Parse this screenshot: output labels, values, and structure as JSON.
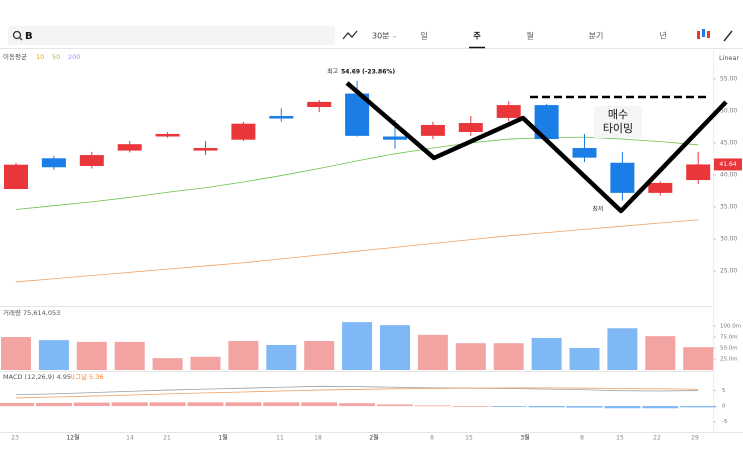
{
  "toolbar": {
    "search": "B",
    "interval": "30분",
    "tabs": [
      "일",
      "주",
      "월",
      "분기",
      "년"
    ],
    "active_tab": 1
  },
  "chart_data": {
    "type": "candlestick",
    "indicator": {
      "label": "이동평균",
      "periods": [
        {
          "text": "10",
          "color": "#e0a000"
        },
        {
          "text": "50",
          "color": "#8bc34a"
        },
        {
          "text": "200",
          "color": "#b388ff"
        }
      ]
    },
    "scale": "Linear",
    "ylim": [
      19.7,
      59.5
    ],
    "yticks": [
      {
        "value": 55,
        "label": "55.00"
      },
      {
        "value": 50,
        "label": "50.00"
      },
      {
        "value": 45,
        "label": "45.00"
      },
      {
        "value": 40,
        "label": "40.00"
      },
      {
        "value": 35,
        "label": "35.00"
      },
      {
        "value": 30,
        "label": "30.00"
      },
      {
        "value": 25,
        "label": "25.00"
      }
    ],
    "up_color": "#e8363b",
    "down_color": "#1a7ee6",
    "open": [
      37.8,
      42.6,
      41.4,
      43.8,
      46.0,
      43.8,
      45.5,
      49.2,
      50.6,
      52.7,
      46.0,
      46.1,
      46.7,
      48.9,
      50.9,
      44.2,
      41.9,
      37.2,
      39.2
    ],
    "close": [
      41.6,
      41.2,
      43.1,
      44.8,
      46.4,
      44.2,
      48.0,
      48.8,
      51.4,
      46.1,
      45.5,
      47.8,
      48.1,
      50.9,
      45.6,
      42.7,
      37.2,
      38.75,
      41.64
    ],
    "high": [
      41.9,
      43.0,
      43.6,
      45.3,
      46.7,
      45.3,
      48.3,
      50.4,
      51.7,
      54.69,
      48.6,
      48.3,
      49.2,
      51.5,
      51.1,
      46.4,
      43.6,
      39.0,
      43.6
    ],
    "low": [
      37.8,
      40.8,
      41.0,
      43.5,
      45.8,
      43.1,
      45.3,
      48.3,
      49.8,
      46.0,
      44.1,
      45.6,
      46.1,
      48.4,
      45.0,
      42.0,
      36.0,
      36.8,
      38.6
    ],
    "high_label": {
      "prefix": "최고",
      "text": "54.69 (-23.86%)"
    },
    "low_label": "최저",
    "last_price": {
      "value": 41.64,
      "label": "41.64"
    },
    "moving_averages": [
      {
        "color": "#6cc04a",
        "values": [
          34.6,
          35.2,
          35.8,
          36.5,
          37.3,
          38.0,
          38.9,
          39.9,
          41.0,
          42.2,
          43.3,
          44.2,
          45.0,
          45.6,
          45.8,
          45.9,
          45.6,
          45.2,
          44.7
        ]
      },
      {
        "color": "#f0a060",
        "values": [
          23.3,
          23.8,
          24.3,
          24.8,
          25.3,
          25.8,
          26.3,
          26.9,
          27.5,
          28.1,
          28.7,
          29.3,
          29.9,
          30.5,
          31.0,
          31.5,
          32.0,
          32.5,
          33.0
        ]
      }
    ],
    "annotation": "매수\n타이밍",
    "volume": {
      "label": "거래량 75,614,053",
      "ylim": [
        0,
        132
      ],
      "yticks": [
        {
          "value": 100,
          "label": "100.0m"
        },
        {
          "value": 75,
          "label": "75.0m"
        },
        {
          "value": 50,
          "label": "50.0m"
        },
        {
          "value": 25,
          "label": "25.0m"
        }
      ],
      "up_color": "#f4a3a3",
      "down_color": "#80b8f5",
      "values": [
        75,
        68,
        64,
        64,
        27,
        30,
        66,
        57,
        66,
        109,
        102,
        80,
        61,
        61,
        73,
        50,
        95,
        77,
        52
      ]
    },
    "macd": {
      "label": "MACD (12,26,9) 4.95",
      "signal_label": "시그널 5.36",
      "ylim": [
        -7,
        8
      ],
      "yticks": [
        5,
        0,
        -5
      ],
      "macd_color": "#9e9e9e",
      "signal_color": "#f0a060",
      "macd_values": [
        3.6,
        3.9,
        4.3,
        4.7,
        5.1,
        5.4,
        5.7,
        6.0,
        6.3,
        6.2,
        6.0,
        5.8,
        5.7,
        5.6,
        5.4,
        5.2,
        4.9,
        4.8,
        4.95
      ],
      "signal_values": [
        2.6,
        2.9,
        3.2,
        3.5,
        3.9,
        4.2,
        4.5,
        4.8,
        5.1,
        5.3,
        5.5,
        5.6,
        5.7,
        5.8,
        5.8,
        5.7,
        5.6,
        5.5,
        5.36
      ],
      "histogram": [
        1.0,
        1.0,
        1.1,
        1.2,
        1.2,
        1.2,
        1.2,
        1.2,
        1.2,
        0.9,
        0.5,
        0.2,
        0.0,
        -0.2,
        -0.4,
        -0.5,
        -0.7,
        -0.7,
        -0.41
      ]
    },
    "x_labels": [
      "23",
      "12월",
      "14",
      "21",
      "1월",
      "11",
      "18",
      "2월",
      "8",
      "15",
      "3월",
      "8",
      "15",
      "22",
      "29"
    ]
  }
}
